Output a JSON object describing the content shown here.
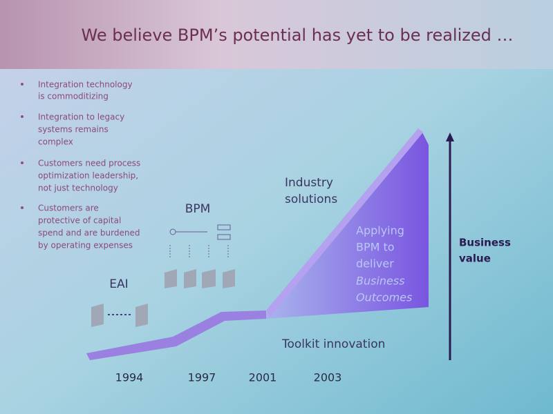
{
  "header": {
    "title": "We believe BPM’s potential has yet to be realized …"
  },
  "bullets": [
    [
      "Integration technology",
      "is commoditizing"
    ],
    [
      "Integration to legacy",
      "systems remains",
      "complex"
    ],
    [
      "Customers need process",
      "optimization leadership,",
      "not just technology"
    ],
    [
      "Customers are",
      "protective of capital",
      "spend and are burdened",
      "by operating expenses"
    ]
  ],
  "diagram": {
    "stages": {
      "eai": "EAI",
      "bpm": "BPM",
      "industry": [
        "Industry",
        "solutions"
      ],
      "toolkit": "Toolkit innovation"
    },
    "applying": {
      "lines": [
        "Applying",
        "BPM to",
        "deliver"
      ],
      "italic_lines": [
        "Business",
        "Outcomes"
      ]
    },
    "axis_label": [
      "Business",
      "value"
    ],
    "years": [
      "1994",
      "1997",
      "2001",
      "2003"
    ]
  }
}
